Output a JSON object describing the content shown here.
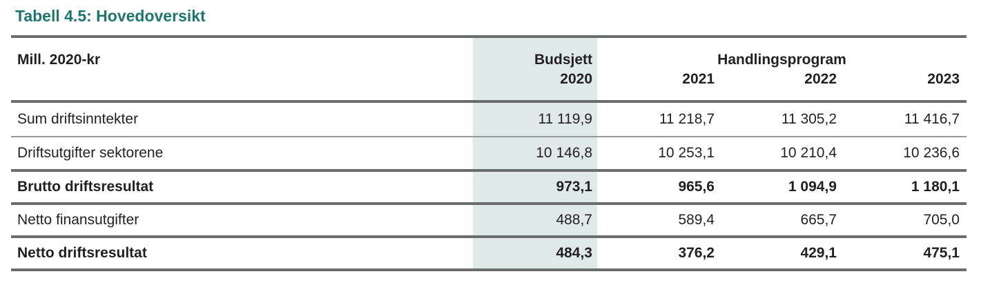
{
  "page": {
    "title": "Tabell 4.5: Hovedoversikt"
  },
  "table": {
    "unit_label": "Mill. 2020-kr",
    "col_group_label": "Handlingsprogram",
    "budget_col": {
      "line1": "Budsjett",
      "line2": "2020"
    },
    "year_cols": [
      "2021",
      "2022",
      "2023"
    ],
    "rows": [
      {
        "label": "Sum driftsinntekter",
        "bold": false,
        "values": [
          "11 119,9",
          "11 218,7",
          "11 305,2",
          "11 416,7"
        ]
      },
      {
        "label": "Driftsutgifter sektorene",
        "bold": false,
        "values": [
          "10 146,8",
          "10 253,1",
          "10 210,4",
          "10 236,6"
        ]
      },
      {
        "label": "Brutto driftsresultat",
        "bold": true,
        "values": [
          "973,1",
          "965,6",
          "1 094,9",
          "1 180,1"
        ]
      },
      {
        "label": "Netto finansutgifter",
        "bold": false,
        "values": [
          "488,7",
          "589,4",
          "665,7",
          "705,0"
        ]
      },
      {
        "label": "Netto driftsresultat",
        "bold": true,
        "values": [
          "484,3",
          "376,2",
          "429,1",
          "475,1"
        ]
      }
    ],
    "colors": {
      "accent_teal": "#20756F",
      "highlight_column_bg": "#DEE9E8",
      "rule_dark": "#6A6B6D",
      "rule_light": "#97989A",
      "text": "#231F20"
    }
  }
}
